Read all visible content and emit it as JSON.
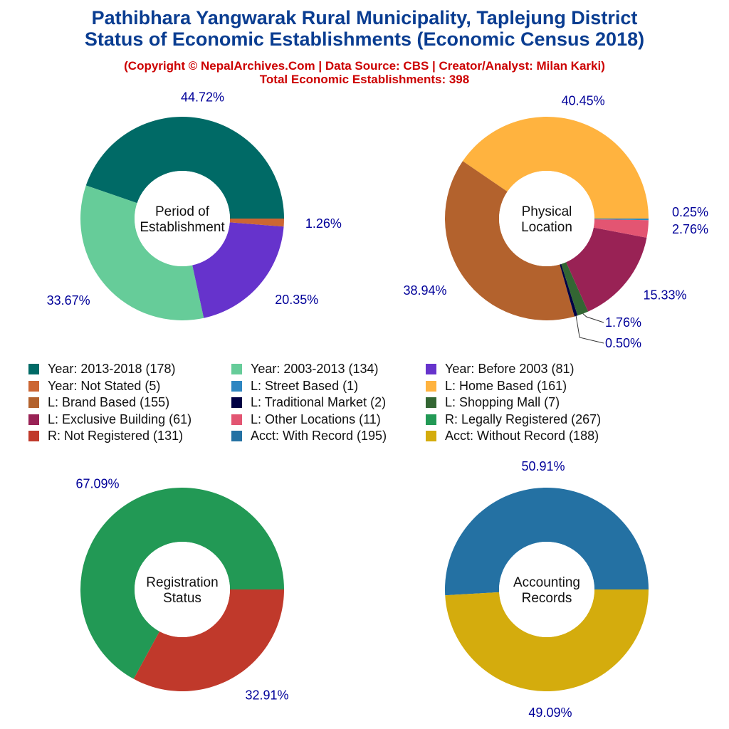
{
  "title_line1": "Pathibhara Yangwarak Rural Municipality, Taplejung District",
  "title_line2": "Status of Economic Establishments (Economic Census 2018)",
  "subtitle": "(Copyright © NepalArchives.Com | Data Source: CBS | Creator/Analyst: Milan Karki)",
  "total": "Total Economic Establishments: 398",
  "chart_data": [
    {
      "type": "pie",
      "donut": true,
      "center_label": [
        "Period of",
        "Establishment"
      ],
      "slices": [
        {
          "name": "Year: 2013-2018",
          "value": 178,
          "label": "44.72%",
          "color": "#006a66"
        },
        {
          "name": "Year: 2003-2013",
          "value": 134,
          "label": "33.67%",
          "color": "#66cc99"
        },
        {
          "name": "Year: Before 2003",
          "value": 81,
          "label": "20.35%",
          "color": "#6633cc"
        },
        {
          "name": "Year: Not Stated",
          "value": 5,
          "label": "1.26%",
          "color": "#cc6633"
        }
      ]
    },
    {
      "type": "pie",
      "donut": true,
      "center_label": [
        "Physical",
        "Location"
      ],
      "slices": [
        {
          "name": "L: Home Based",
          "value": 161,
          "label": "40.45%",
          "color": "#ffb33f"
        },
        {
          "name": "L: Brand Based",
          "value": 155,
          "label": "38.94%",
          "color": "#b3622d"
        },
        {
          "name": "L: Traditional Market",
          "value": 2,
          "label": "0.50%",
          "color": "#000044"
        },
        {
          "name": "L: Shopping Mall",
          "value": 7,
          "label": "1.76%",
          "color": "#336633"
        },
        {
          "name": "L: Exclusive Building",
          "value": 61,
          "label": "15.33%",
          "color": "#992255"
        },
        {
          "name": "L: Other Locations",
          "value": 11,
          "label": "2.76%",
          "color": "#e35572"
        },
        {
          "name": "L: Street Based",
          "value": 1,
          "label": "0.25%",
          "color": "#2e86c1"
        }
      ]
    },
    {
      "type": "pie",
      "donut": true,
      "center_label": [
        "Registration",
        "Status"
      ],
      "slices": [
        {
          "name": "R: Legally Registered",
          "value": 267,
          "label": "67.09%",
          "color": "#229955"
        },
        {
          "name": "R: Not Registered",
          "value": 131,
          "label": "32.91%",
          "color": "#c0392b"
        }
      ]
    },
    {
      "type": "pie",
      "donut": true,
      "center_label": [
        "Accounting",
        "Records"
      ],
      "slices": [
        {
          "name": "Acct: With Record",
          "value": 195,
          "label": "50.91%",
          "color": "#2471a3"
        },
        {
          "name": "Acct: Without Record",
          "value": 188,
          "label": "49.09%",
          "color": "#d4ac0d"
        }
      ]
    }
  ],
  "legend": [
    {
      "label": "Year: 2013-2018 (178)",
      "color": "#006a66"
    },
    {
      "label": "Year: 2003-2013 (134)",
      "color": "#66cc99"
    },
    {
      "label": "Year: Before 2003 (81)",
      "color": "#6633cc"
    },
    {
      "label": "Year: Not Stated (5)",
      "color": "#cc6633"
    },
    {
      "label": "L: Street Based (1)",
      "color": "#2e86c1"
    },
    {
      "label": "L: Home Based (161)",
      "color": "#ffb33f"
    },
    {
      "label": "L: Brand Based (155)",
      "color": "#b3622d"
    },
    {
      "label": "L: Traditional Market (2)",
      "color": "#000044"
    },
    {
      "label": "L: Shopping Mall (7)",
      "color": "#336633"
    },
    {
      "label": "L: Exclusive Building (61)",
      "color": "#992255"
    },
    {
      "label": "L: Other Locations (11)",
      "color": "#e35572"
    },
    {
      "label": "R: Legally Registered (267)",
      "color": "#229955"
    },
    {
      "label": "R: Not Registered (131)",
      "color": "#c0392b"
    },
    {
      "label": "Acct: With Record (195)",
      "color": "#2471a3"
    },
    {
      "label": "Acct: Without Record (188)",
      "color": "#d4ac0d"
    }
  ],
  "label_color": "#000099"
}
